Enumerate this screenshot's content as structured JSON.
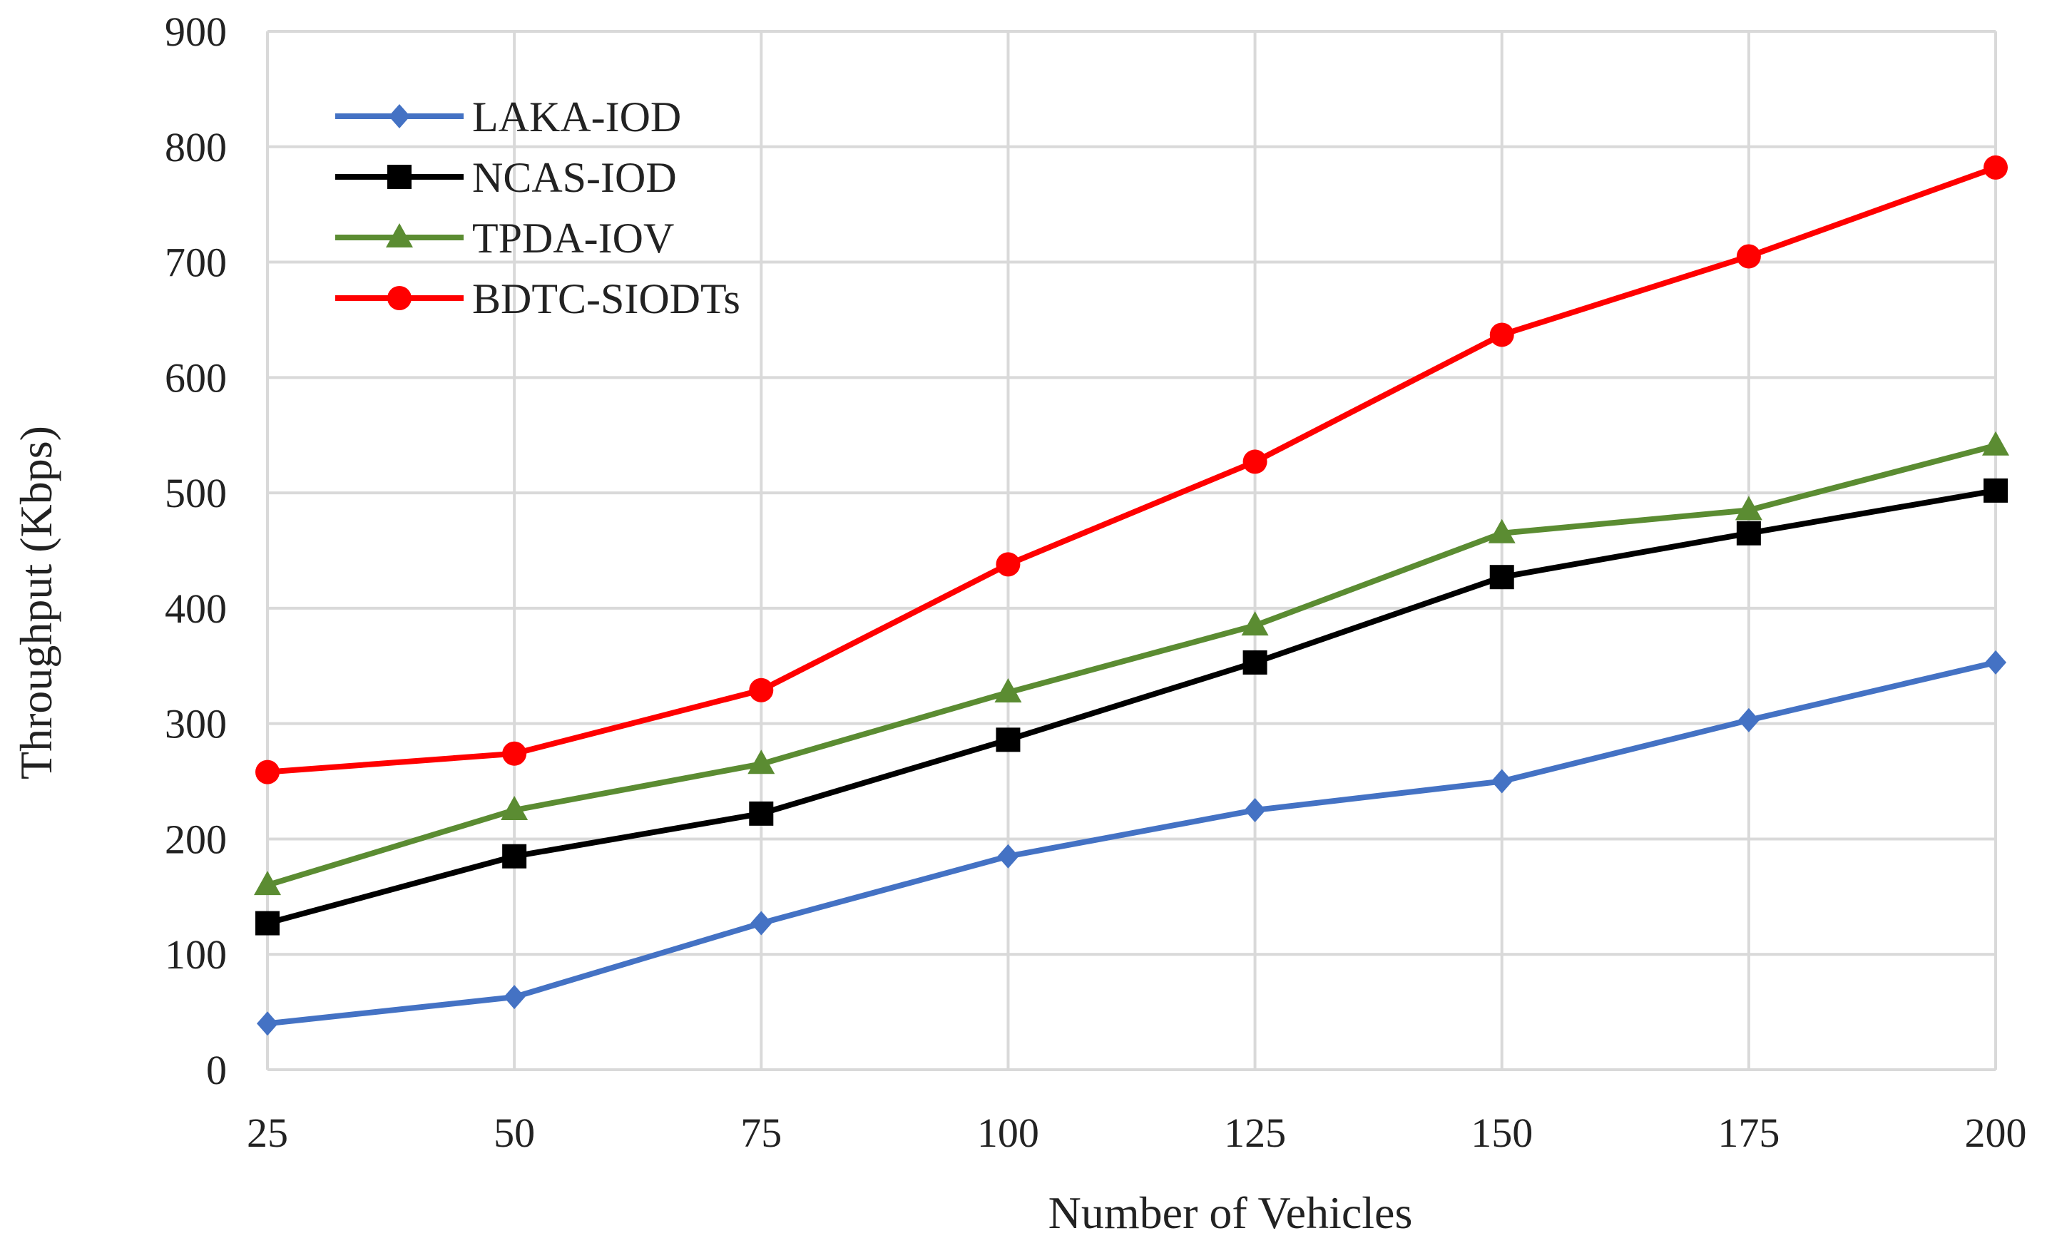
{
  "chart_data": {
    "type": "line",
    "title": "",
    "xlabel": "Number of Vehicles",
    "ylabel": "Throughput (Kbps)",
    "categories": [
      "25",
      "50",
      "75",
      "100",
      "125",
      "150",
      "175",
      "200"
    ],
    "x": [
      25,
      50,
      75,
      100,
      125,
      150,
      175,
      200
    ],
    "xlim": [
      25,
      200
    ],
    "ylim": [
      0,
      900
    ],
    "yticks": [
      0,
      100,
      200,
      300,
      400,
      500,
      600,
      700,
      800,
      900
    ],
    "ytick_labels": [
      "0",
      "100",
      "200",
      "300",
      "400",
      "500",
      "600",
      "700",
      "800",
      "900"
    ],
    "grid": true,
    "legend_position": "top-left",
    "series": [
      {
        "name": "LAKA-IOD",
        "color": "#4472C4",
        "marker": "diamond",
        "values": [
          40,
          63,
          127,
          185,
          225,
          250,
          303,
          353
        ]
      },
      {
        "name": "NCAS-IOD",
        "color": "#000000",
        "marker": "square",
        "values": [
          127,
          185,
          222,
          286,
          353,
          427,
          465,
          502
        ]
      },
      {
        "name": "TPDA-IOV",
        "color": "#5B8C32",
        "marker": "triangle",
        "values": [
          160,
          225,
          265,
          327,
          385,
          465,
          485,
          541
        ]
      },
      {
        "name": "BDTC-SIODTs",
        "color": "#FF0000",
        "marker": "circle",
        "values": [
          258,
          274,
          329,
          438,
          527,
          637,
          705,
          782
        ]
      }
    ]
  }
}
